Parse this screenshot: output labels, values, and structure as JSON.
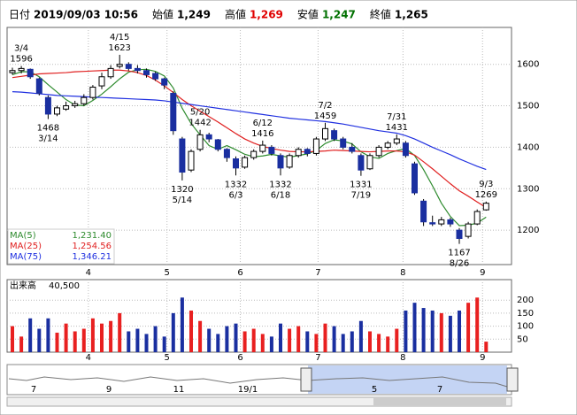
{
  "chart_data": {
    "type": "candlestick",
    "header": [
      {
        "label": "日付",
        "value": "2019/09/03 10:56",
        "color": "#000000"
      },
      {
        "label": "始値",
        "value": "1,249",
        "color": "#000000"
      },
      {
        "label": "高値",
        "value": "1,269",
        "color": "#e00000"
      },
      {
        "label": "安値",
        "value": "1,247",
        "color": "#007000"
      },
      {
        "label": "終値",
        "value": "1,265",
        "color": "#000000"
      }
    ],
    "open": [
      1580,
      1585,
      1588,
      1565,
      1520,
      1480,
      1492,
      1500,
      1505,
      1520,
      1548,
      1570,
      1595,
      1600,
      1590,
      1585,
      1578,
      1565,
      1530,
      1420,
      1345,
      1395,
      1430,
      1418,
      1395,
      1372,
      1352,
      1375,
      1390,
      1400,
      1380,
      1352,
      1380,
      1395,
      1385,
      1420,
      1440,
      1420,
      1400,
      1380,
      1348,
      1380,
      1400,
      1410,
      1410,
      1360,
      1270,
      1218,
      1215,
      1225,
      1200,
      1185,
      1215,
      1249
    ],
    "high": [
      1592,
      1596,
      1590,
      1568,
      1525,
      1500,
      1510,
      1512,
      1528,
      1550,
      1580,
      1598,
      1623,
      1605,
      1598,
      1590,
      1582,
      1568,
      1535,
      1425,
      1395,
      1442,
      1435,
      1420,
      1398,
      1378,
      1380,
      1395,
      1416,
      1405,
      1385,
      1385,
      1400,
      1398,
      1425,
      1459,
      1445,
      1425,
      1410,
      1385,
      1385,
      1405,
      1415,
      1431,
      1415,
      1365,
      1275,
      1235,
      1232,
      1230,
      1205,
      1220,
      1250,
      1269
    ],
    "low": [
      1575,
      1578,
      1565,
      1525,
      1468,
      1475,
      1488,
      1495,
      1500,
      1515,
      1540,
      1565,
      1590,
      1585,
      1578,
      1568,
      1560,
      1540,
      1430,
      1320,
      1340,
      1390,
      1412,
      1390,
      1365,
      1332,
      1348,
      1370,
      1385,
      1380,
      1332,
      1348,
      1375,
      1378,
      1380,
      1415,
      1415,
      1395,
      1385,
      1331,
      1345,
      1375,
      1395,
      1405,
      1375,
      1285,
      1210,
      1210,
      1210,
      1208,
      1167,
      1180,
      1212,
      1247
    ],
    "close": [
      1585,
      1590,
      1570,
      1530,
      1480,
      1495,
      1500,
      1505,
      1520,
      1545,
      1570,
      1590,
      1600,
      1590,
      1585,
      1575,
      1565,
      1550,
      1440,
      1340,
      1390,
      1430,
      1420,
      1395,
      1375,
      1350,
      1375,
      1390,
      1405,
      1385,
      1350,
      1380,
      1395,
      1385,
      1420,
      1445,
      1420,
      1400,
      1390,
      1345,
      1380,
      1400,
      1410,
      1420,
      1380,
      1290,
      1220,
      1215,
      1225,
      1215,
      1180,
      1215,
      1245,
      1265
    ],
    "up_color": "#ffffff",
    "down_color": "#1a2fa0",
    "ma": [
      {
        "name": "MA(5)",
        "color": "#2e8b2e",
        "last_label": "1,231.40",
        "values": [
          1575,
          1582,
          1582,
          1570,
          1551,
          1533,
          1515,
          1502,
          1500,
          1513,
          1528,
          1546,
          1565,
          1581,
          1587,
          1588,
          1583,
          1572,
          1543,
          1494,
          1457,
          1430,
          1404,
          1395,
          1404,
          1394,
          1383,
          1377,
          1379,
          1383,
          1379,
          1376,
          1380,
          1384,
          1392,
          1409,
          1418,
          1415,
          1408,
          1389,
          1377,
          1373,
          1385,
          1392,
          1397,
          1380,
          1346,
          1307,
          1265,
          1233,
          1211,
          1212,
          1217,
          1231.4
        ]
      },
      {
        "name": "MA(25)",
        "color": "#e02020",
        "last_label": "1,254.56",
        "values": [
          1568,
          1571,
          1574,
          1577,
          1578,
          1579,
          1580,
          1582,
          1583,
          1584,
          1585,
          1586,
          1586,
          1584,
          1580,
          1573,
          1562,
          1548,
          1532,
          1515,
          1500,
          1487,
          1474,
          1461,
          1447,
          1433,
          1420,
          1410,
          1402,
          1397,
          1393,
          1390,
          1389,
          1389,
          1390,
          1391,
          1393,
          1392,
          1391,
          1390,
          1389,
          1390,
          1391,
          1391,
          1389,
          1381,
          1365,
          1348,
          1330,
          1312,
          1295,
          1282,
          1268,
          1254.56
        ]
      },
      {
        "name": "MA(75)",
        "color": "#2030e0",
        "last_label": "1,346.21",
        "values": [
          1534,
          1533,
          1531,
          1529,
          1527,
          1525,
          1524,
          1523,
          1522,
          1521,
          1520,
          1519,
          1518,
          1517,
          1516,
          1515,
          1514,
          1512,
          1509,
          1506,
          1503,
          1500,
          1497,
          1494,
          1491,
          1488,
          1485,
          1482,
          1479,
          1476,
          1473,
          1470,
          1468,
          1466,
          1464,
          1462,
          1459,
          1456,
          1452,
          1448,
          1444,
          1440,
          1437,
          1434,
          1428,
          1420,
          1410,
          1400,
          1391,
          1382,
          1372,
          1363,
          1354,
          1346.21
        ]
      }
    ],
    "ylim": [
      1117,
      1689
    ],
    "yticks": [
      1200,
      1300,
      1400,
      1500,
      1600
    ],
    "xticks": [
      {
        "value": 8.5,
        "label": "4"
      },
      {
        "value": 17.3,
        "label": "5"
      },
      {
        "value": 25.5,
        "label": "6"
      },
      {
        "value": 34.2,
        "label": "7"
      },
      {
        "value": 43.7,
        "label": "8"
      },
      {
        "value": 52.6,
        "label": "9"
      }
    ],
    "annotations": [
      {
        "date": "3/4",
        "price": 1596,
        "x": 1,
        "pos": "above"
      },
      {
        "date": "3/14",
        "price": 1468,
        "x": 4,
        "pos": "below"
      },
      {
        "date": "4/15",
        "price": 1623,
        "x": 12,
        "pos": "above"
      },
      {
        "date": "5/14",
        "price": 1320,
        "x": 19,
        "pos": "below"
      },
      {
        "date": "5/20",
        "price": 1442,
        "x": 21,
        "pos": "above"
      },
      {
        "date": "6/3",
        "price": 1332,
        "x": 25,
        "pos": "below"
      },
      {
        "date": "6/12",
        "price": 1416,
        "x": 28,
        "pos": "above"
      },
      {
        "date": "6/18",
        "price": 1332,
        "x": 30,
        "pos": "below"
      },
      {
        "date": "7/2",
        "price": 1459,
        "x": 35,
        "pos": "above"
      },
      {
        "date": "7/19",
        "price": 1331,
        "x": 39,
        "pos": "below"
      },
      {
        "date": "7/31",
        "price": 1431,
        "x": 43,
        "pos": "above"
      },
      {
        "date": "8/26",
        "price": 1167,
        "x": 50,
        "pos": "below"
      },
      {
        "date": "9/3",
        "price": 1269,
        "x": 53,
        "pos": "above"
      }
    ],
    "volume": {
      "label": "出来高",
      "value_label": "40,500",
      "up_color": "#e82020",
      "down_color": "#1a2fa0",
      "values": [
        100,
        60,
        130,
        90,
        130,
        75,
        110,
        80,
        90,
        130,
        110,
        120,
        150,
        80,
        90,
        70,
        100,
        60,
        150,
        210,
        160,
        120,
        90,
        70,
        100,
        110,
        80,
        90,
        70,
        60,
        110,
        90,
        100,
        80,
        70,
        110,
        100,
        70,
        80,
        120,
        80,
        70,
        60,
        90,
        160,
        190,
        170,
        160,
        150,
        140,
        160,
        190,
        210,
        40.5
      ],
      "ylim": [
        0,
        279
      ],
      "yticks": [
        50,
        100,
        150,
        200
      ]
    },
    "navigator_labels": [
      "7",
      "9",
      "11",
      "19/1",
      "5",
      "7"
    ]
  }
}
